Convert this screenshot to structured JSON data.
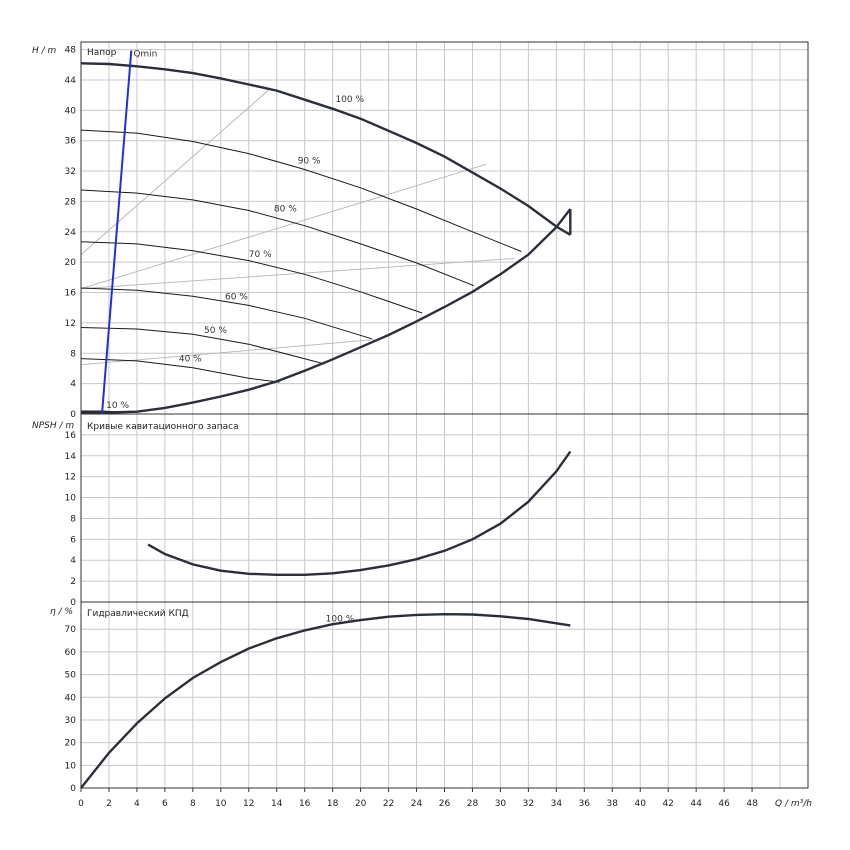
{
  "chart_data": [
    {
      "type": "line",
      "title": "Напор",
      "ylabel": "H / m",
      "xlabel": "Q / m³/h",
      "xlim": [
        0,
        52
      ],
      "ylim": [
        0,
        49
      ],
      "yticks": [
        0,
        4,
        8,
        12,
        16,
        20,
        24,
        28,
        32,
        36,
        40,
        44,
        48
      ],
      "grid": true,
      "series": [
        {
          "name": "100 %",
          "x": [
            0,
            2,
            4,
            6,
            8,
            10,
            12,
            14,
            16,
            18,
            20,
            22,
            24,
            26,
            28,
            30,
            32,
            34,
            35.0
          ],
          "y": [
            46.2,
            46.1,
            45.8,
            45.4,
            44.9,
            44.2,
            43.4,
            42.6,
            41.4,
            40.2,
            38.9,
            37.3,
            35.7,
            33.9,
            31.8,
            29.7,
            27.4,
            24.7,
            23.6
          ]
        },
        {
          "name": "90 %",
          "x": [
            0,
            4,
            8,
            12,
            16,
            20,
            24,
            28,
            31.5
          ],
          "y": [
            37.4,
            37.0,
            35.9,
            34.3,
            32.2,
            29.8,
            27.0,
            24.0,
            21.4
          ]
        },
        {
          "name": "80 %",
          "x": [
            0,
            4,
            8,
            12,
            16,
            20,
            24,
            28.1
          ],
          "y": [
            29.5,
            29.1,
            28.2,
            26.8,
            24.8,
            22.4,
            19.9,
            16.9
          ]
        },
        {
          "name": "70 %",
          "x": [
            0,
            4,
            8,
            12,
            16,
            20,
            24.4
          ],
          "y": [
            22.7,
            22.4,
            21.5,
            20.2,
            18.4,
            16.1,
            13.3
          ]
        },
        {
          "name": "60 %",
          "x": [
            0,
            4,
            8,
            12,
            16,
            20.8
          ],
          "y": [
            16.6,
            16.3,
            15.5,
            14.3,
            12.6,
            9.9
          ]
        },
        {
          "name": "50 %",
          "x": [
            0,
            4,
            8,
            12,
            17.4
          ],
          "y": [
            11.4,
            11.2,
            10.5,
            9.2,
            6.6
          ]
        },
        {
          "name": "40 %",
          "x": [
            0,
            4,
            8,
            12,
            14.2
          ],
          "y": [
            7.3,
            7.0,
            6.1,
            4.7,
            4.2
          ]
        },
        {
          "name": "10 %",
          "x": [
            0,
            1.5,
            3.5
          ],
          "y": [
            0.4,
            0.4,
            0.2
          ]
        }
      ],
      "envelope": {
        "x": [
          0,
          2,
          4,
          6,
          8,
          10,
          12,
          14,
          16,
          18,
          20,
          22,
          24,
          26,
          28,
          30,
          32,
          34,
          35.0
        ],
        "y": [
          0.2,
          0.2,
          0.3,
          0.8,
          1.5,
          2.3,
          3.2,
          4.3,
          5.7,
          7.2,
          8.8,
          10.4,
          12.2,
          14.1,
          16.1,
          18.4,
          21.0,
          24.6,
          27.0
        ]
      },
      "efficiency_lines": [
        {
          "x": [
            0,
            13.5
          ],
          "y": [
            21.0,
            42.8
          ]
        },
        {
          "x": [
            0,
            29.0
          ],
          "y": [
            16.5,
            32.9
          ]
        },
        {
          "x": [
            0,
            31.0
          ],
          "y": [
            16.5,
            20.5
          ]
        },
        {
          "x": [
            0,
            21.0
          ],
          "y": [
            6.5,
            9.8
          ]
        }
      ],
      "qmin_line": {
        "label": "Qmin",
        "x": [
          1.5,
          3.6
        ],
        "y": [
          0,
          47.9
        ]
      },
      "labels": [
        {
          "text": "100 %",
          "x": 18.2,
          "y": 41.1
        },
        {
          "text": "90 %",
          "x": 15.5,
          "y": 33.0
        },
        {
          "text": "80 %",
          "x": 13.8,
          "y": 26.7
        },
        {
          "text": "70 %",
          "x": 12.0,
          "y": 20.7
        },
        {
          "text": "60 %",
          "x": 10.3,
          "y": 15.1
        },
        {
          "text": "50 %",
          "x": 8.8,
          "y": 10.7
        },
        {
          "text": "40 %",
          "x": 7.0,
          "y": 6.9
        },
        {
          "text": "10 %",
          "x": 1.8,
          "y": 0.8
        }
      ]
    },
    {
      "type": "line",
      "title": "Кривые кавитационного запаса",
      "ylabel": "NPSH / m",
      "xlabel": "Q / m³/h",
      "xlim": [
        0,
        52
      ],
      "ylim": [
        0,
        18
      ],
      "yticks": [
        0,
        2,
        4,
        6,
        8,
        10,
        12,
        14,
        16
      ],
      "grid": true,
      "series": [
        {
          "name": "",
          "x": [
            4.8,
            6,
            8,
            10,
            12,
            14,
            16,
            18,
            20,
            22,
            24,
            26,
            28,
            30,
            32,
            34,
            35.0
          ],
          "y": [
            5.5,
            4.6,
            3.6,
            3.0,
            2.7,
            2.6,
            2.6,
            2.75,
            3.05,
            3.5,
            4.1,
            4.9,
            6.0,
            7.5,
            9.6,
            12.5,
            14.4
          ]
        }
      ]
    },
    {
      "type": "line",
      "title": "Гидравлический КПД",
      "ylabel": "η / %",
      "xlabel": "Q / m³/h",
      "xlim": [
        0,
        52
      ],
      "ylim": [
        0,
        82
      ],
      "yticks": [
        0,
        10,
        20,
        30,
        40,
        50,
        60,
        70
      ],
      "xticks": [
        0,
        2,
        4,
        6,
        8,
        10,
        12,
        14,
        16,
        18,
        20,
        22,
        24,
        26,
        28,
        30,
        32,
        34,
        36,
        38,
        40,
        42,
        44,
        46,
        48
      ],
      "grid": true,
      "series": [
        {
          "name": "100 %",
          "x": [
            0,
            2,
            4,
            6,
            8,
            10,
            12,
            14,
            16,
            18,
            20,
            22,
            24,
            26,
            28,
            30,
            32,
            34,
            35.0
          ],
          "y": [
            0,
            15.5,
            28.5,
            39.5,
            48.5,
            55.5,
            61.5,
            66.0,
            69.5,
            72.2,
            74.0,
            75.5,
            76.3,
            76.6,
            76.5,
            75.7,
            74.5,
            72.6,
            71.7
          ]
        }
      ],
      "labels": [
        {
          "text": "100 %",
          "x": 17.5,
          "y": 73.5
        }
      ]
    }
  ],
  "labels": {
    "h_axis": "H / m",
    "npsh_axis": "NPSH / m",
    "eta_axis": "η / %",
    "q_axis": "Q / m³/h",
    "panel1": "Напор",
    "panel2": "Кривые кавитационного запаса",
    "panel3": "Гидравлический КПД",
    "qmin": "Qmin"
  }
}
